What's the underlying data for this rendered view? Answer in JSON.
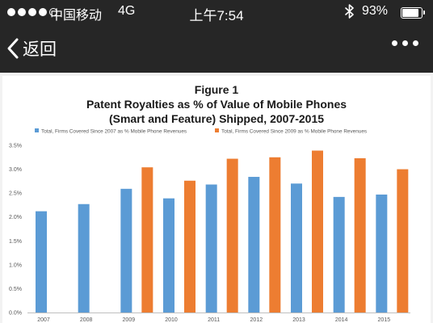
{
  "status_bar": {
    "carrier": "中国移动",
    "network": "4G",
    "time": "上午7:54",
    "battery_pct": "93%",
    "battery_level": 0.93,
    "signal_bars_filled": 4,
    "signal_bars_total": 5,
    "bluetooth_icon": "bluetooth-icon"
  },
  "nav_bar": {
    "back_label": "返回",
    "back_icon": "chevron-left-icon",
    "more_icon": "more-horizontal-icon"
  },
  "chart_data": {
    "type": "bar",
    "title_lines": [
      "Figure 1",
      "Patent Royalties as % of Value of Mobile Phones",
      "(Smart and Feature) Shipped, 2007-2015"
    ],
    "categories": [
      "2007",
      "2008",
      "2009",
      "2010",
      "2011",
      "2012",
      "2013",
      "2014",
      "2015"
    ],
    "series": [
      {
        "name": "Total, Firms Covered Since 2007 as % Mobile Phone Revenues",
        "color": "#5b9bd5",
        "values": [
          2.12,
          2.27,
          2.59,
          2.39,
          2.68,
          2.84,
          2.7,
          2.42,
          2.47
        ]
      },
      {
        "name": "Total, Firms Covered Since 2009 as % Mobile Phone Revenues",
        "color": "#ed7d31",
        "values": [
          null,
          null,
          3.04,
          2.76,
          3.22,
          3.25,
          3.39,
          3.23,
          3.0
        ]
      }
    ],
    "y_ticks": [
      "0.0%",
      "0.5%",
      "1.0%",
      "1.5%",
      "2.0%",
      "2.5%",
      "3.0%",
      "3.5%"
    ],
    "ylim": [
      0,
      3.5
    ],
    "grid": false,
    "legend_position": "top"
  }
}
